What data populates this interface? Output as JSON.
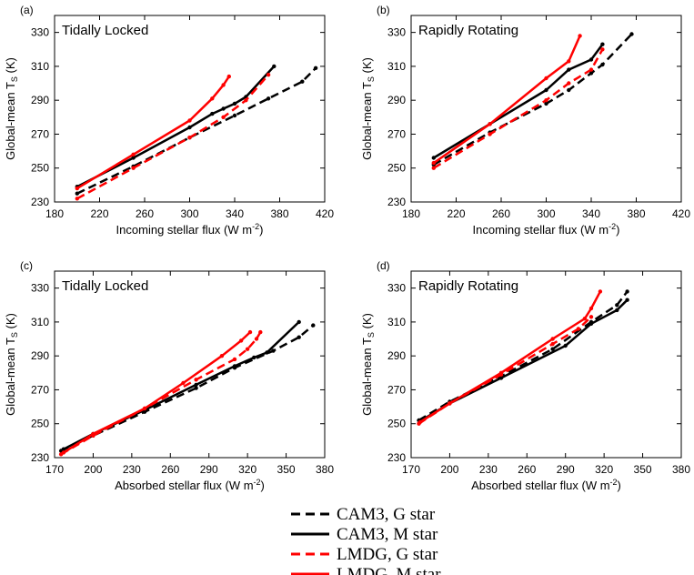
{
  "chart_data": [
    {
      "type": "line",
      "panel_label": "(a)",
      "title": "Tidally Locked",
      "xlabel": "Incoming stellar flux (W m",
      "xlabel_sup": "-2",
      "xlabel_end": ")",
      "ylabel": "Global-mean T",
      "ylabel_sub": "S",
      "ylabel_end": " (K)",
      "xlim": [
        180,
        420
      ],
      "ylim": [
        230,
        340
      ],
      "xticks": [
        180,
        220,
        260,
        300,
        340,
        380,
        420
      ],
      "yticks": [
        230,
        250,
        270,
        290,
        310,
        330
      ],
      "series": [
        {
          "name": "CAM3, G star",
          "color": "#000000",
          "dash": true,
          "x": [
            200,
            250,
            300,
            340,
            370,
            400,
            412
          ],
          "y": [
            235,
            251,
            268,
            281,
            291,
            301,
            309
          ]
        },
        {
          "name": "CAM3, M star",
          "color": "#000000",
          "dash": false,
          "x": [
            200,
            250,
            300,
            320,
            330,
            340,
            350,
            375
          ],
          "y": [
            239,
            256,
            274,
            282,
            285,
            288,
            292,
            310
          ]
        },
        {
          "name": "LMDG, G star",
          "color": "#ff0000",
          "dash": true,
          "x": [
            200,
            250,
            300,
            330,
            350,
            370
          ],
          "y": [
            232,
            250,
            268,
            280,
            290,
            305
          ]
        },
        {
          "name": "LMDG, M star",
          "color": "#ff0000",
          "dash": false,
          "x": [
            200,
            250,
            300,
            320,
            330,
            335
          ],
          "y": [
            238,
            258,
            278,
            291,
            299,
            304
          ]
        }
      ]
    },
    {
      "type": "line",
      "panel_label": "(b)",
      "title": "Rapidly Rotating",
      "xlabel": "Incoming stellar flux (W m",
      "xlabel_sup": "-2",
      "xlabel_end": ")",
      "ylabel": "Global-mean T",
      "ylabel_sub": "S",
      "ylabel_end": " (K)",
      "xlim": [
        180,
        420
      ],
      "ylim": [
        230,
        340
      ],
      "xticks": [
        180,
        220,
        260,
        300,
        340,
        380,
        420
      ],
      "yticks": [
        230,
        250,
        270,
        290,
        310,
        330
      ],
      "series": [
        {
          "name": "CAM3, G star",
          "color": "#000000",
          "dash": true,
          "x": [
            200,
            250,
            300,
            320,
            340,
            350,
            376
          ],
          "y": [
            252,
            271,
            288,
            296,
            306,
            311,
            329
          ]
        },
        {
          "name": "CAM3, M star",
          "color": "#000000",
          "dash": false,
          "x": [
            200,
            250,
            300,
            320,
            340,
            350
          ],
          "y": [
            256,
            276,
            296,
            308,
            314,
            323
          ]
        },
        {
          "name": "LMDG, G star",
          "color": "#ff0000",
          "dash": true,
          "x": [
            200,
            250,
            300,
            320,
            340,
            350
          ],
          "y": [
            250,
            270,
            290,
            300,
            308,
            320
          ]
        },
        {
          "name": "LMDG, M star",
          "color": "#ff0000",
          "dash": false,
          "x": [
            200,
            250,
            300,
            320,
            330
          ],
          "y": [
            253,
            276,
            303,
            313,
            328
          ]
        }
      ]
    },
    {
      "type": "line",
      "panel_label": "(c)",
      "title": "Tidally Locked",
      "xlabel": "Absorbed stellar flux (W m",
      "xlabel_sup": "-2",
      "xlabel_end": ")",
      "ylabel": "Global-mean T",
      "ylabel_sub": "S",
      "ylabel_end": " (K)",
      "xlim": [
        170,
        380
      ],
      "ylim": [
        230,
        340
      ],
      "xticks": [
        170,
        200,
        230,
        260,
        290,
        320,
        350,
        380
      ],
      "yticks": [
        230,
        250,
        270,
        290,
        310,
        330
      ],
      "series": [
        {
          "name": "CAM3, G star",
          "color": "#000000",
          "dash": true,
          "x": [
            175,
            200,
            240,
            280,
            310,
            340,
            360,
            371
          ],
          "y": [
            234,
            243,
            257,
            271,
            283,
            293,
            301,
            308
          ]
        },
        {
          "name": "CAM3, M star",
          "color": "#000000",
          "dash": false,
          "x": [
            177,
            200,
            240,
            280,
            310,
            325,
            335,
            360
          ],
          "y": [
            235,
            244,
            258,
            273,
            284,
            289,
            292,
            310
          ]
        },
        {
          "name": "LMDG, G star",
          "color": "#ff0000",
          "dash": true,
          "x": [
            175,
            200,
            240,
            280,
            310,
            320,
            327,
            330
          ],
          "y": [
            232,
            243,
            259,
            276,
            288,
            294,
            300,
            304
          ]
        },
        {
          "name": "LMDG, M star",
          "color": "#ff0000",
          "dash": false,
          "x": [
            177,
            200,
            240,
            270,
            300,
            315,
            322
          ],
          "y": [
            233,
            244,
            259,
            274,
            290,
            299,
            304
          ]
        }
      ]
    },
    {
      "type": "line",
      "panel_label": "(d)",
      "title": "Rapidly Rotating",
      "xlabel": "Absorbed stellar flux (W m",
      "xlabel_sup": "-2",
      "xlabel_end": ")",
      "ylabel": "Global-mean T",
      "ylabel_sub": "S",
      "ylabel_end": " (K)",
      "xlim": [
        170,
        380
      ],
      "ylim": [
        230,
        340
      ],
      "xticks": [
        170,
        200,
        230,
        260,
        290,
        320,
        350,
        380
      ],
      "yticks": [
        230,
        250,
        270,
        290,
        310,
        330
      ],
      "series": [
        {
          "name": "CAM3, G star",
          "color": "#000000",
          "dash": true,
          "x": [
            176,
            200,
            240,
            280,
            310,
            330,
            338
          ],
          "y": [
            252,
            263,
            278,
            294,
            310,
            320,
            328
          ]
        },
        {
          "name": "CAM3, M star",
          "color": "#000000",
          "dash": false,
          "x": [
            178,
            200,
            240,
            290,
            310,
            330,
            338
          ],
          "y": [
            252,
            262,
            277,
            296,
            309,
            317,
            323
          ]
        },
        {
          "name": "LMDG, G star",
          "color": "#ff0000",
          "dash": true,
          "x": [
            176,
            200,
            240,
            280,
            300,
            310
          ],
          "y": [
            250,
            262,
            279,
            297,
            306,
            313
          ]
        },
        {
          "name": "LMDG, M star",
          "color": "#ff0000",
          "dash": false,
          "x": [
            177,
            200,
            240,
            280,
            305,
            310,
            317
          ],
          "y": [
            251,
            262,
            280,
            300,
            312,
            318,
            328
          ]
        }
      ]
    }
  ],
  "legend": [
    {
      "label": "CAM3, G star",
      "color": "#000000",
      "dash": true
    },
    {
      "label": "CAM3, M star",
      "color": "#000000",
      "dash": false
    },
    {
      "label": "LMDG, G star",
      "color": "#ff0000",
      "dash": true
    },
    {
      "label": "LMDG, M star",
      "color": "#ff0000",
      "dash": false
    }
  ]
}
